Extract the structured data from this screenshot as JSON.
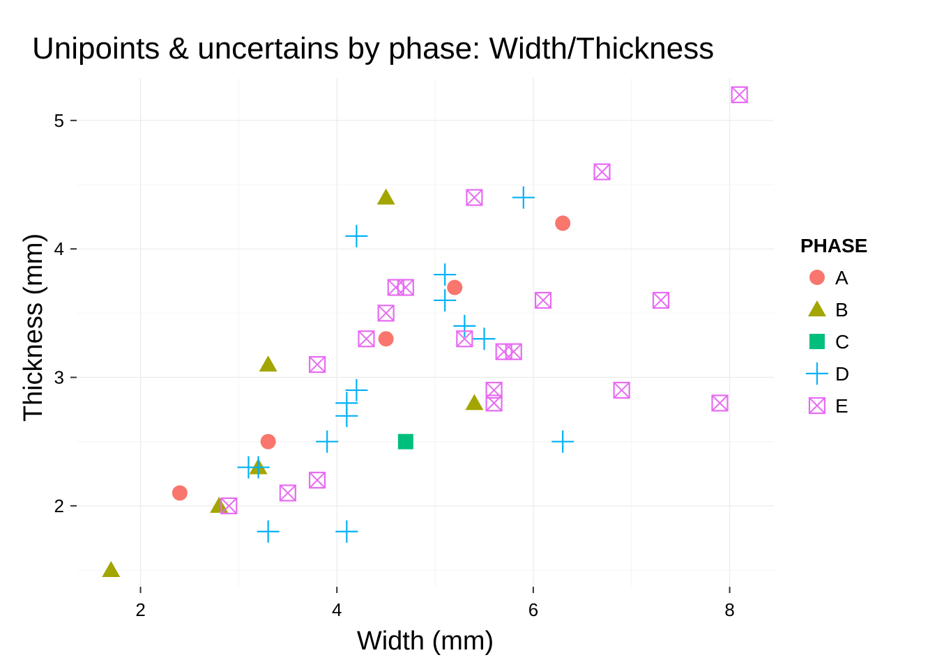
{
  "chart_data": {
    "type": "scatter",
    "title": "Unipoints & uncertains by phase: Width/Thickness",
    "xlabel": "Width (mm)",
    "ylabel": "Thickness (mm)",
    "xlim": [
      1.35,
      8.45
    ],
    "ylim": [
      1.37,
      5.33
    ],
    "x_ticks": [
      2,
      4,
      6,
      8
    ],
    "y_ticks": [
      2,
      3,
      4,
      5
    ],
    "grid": true,
    "legend": {
      "title": "PHASE",
      "position": "right"
    },
    "series": [
      {
        "name": "A",
        "shape": "circle",
        "color": "#F8766D",
        "points": [
          [
            2.4,
            2.1
          ],
          [
            3.3,
            2.5
          ],
          [
            4.5,
            3.3
          ],
          [
            5.2,
            3.7
          ],
          [
            6.3,
            4.2
          ]
        ]
      },
      {
        "name": "B",
        "shape": "triangle",
        "color": "#A3A500",
        "points": [
          [
            1.7,
            1.5
          ],
          [
            2.8,
            2.0
          ],
          [
            3.2,
            2.3
          ],
          [
            3.3,
            3.1
          ],
          [
            4.5,
            4.4
          ],
          [
            5.4,
            2.8
          ]
        ]
      },
      {
        "name": "C",
        "shape": "square",
        "color": "#00BF7D",
        "points": [
          [
            4.7,
            2.5
          ]
        ]
      },
      {
        "name": "D",
        "shape": "plus",
        "color": "#00B0F6",
        "points": [
          [
            3.1,
            2.3
          ],
          [
            3.2,
            2.3
          ],
          [
            3.3,
            1.8
          ],
          [
            3.9,
            2.5
          ],
          [
            4.1,
            1.8
          ],
          [
            4.1,
            2.7
          ],
          [
            4.1,
            2.8
          ],
          [
            4.2,
            2.9
          ],
          [
            4.2,
            4.1
          ],
          [
            5.1,
            3.6
          ],
          [
            5.1,
            3.8
          ],
          [
            5.3,
            3.4
          ],
          [
            5.5,
            3.3
          ],
          [
            5.9,
            4.4
          ],
          [
            6.3,
            2.5
          ]
        ]
      },
      {
        "name": "E",
        "shape": "square-cross",
        "color": "#E76BF3",
        "points": [
          [
            2.9,
            2.0
          ],
          [
            3.5,
            2.1
          ],
          [
            3.8,
            2.2
          ],
          [
            3.8,
            3.1
          ],
          [
            4.3,
            3.3
          ],
          [
            4.5,
            3.5
          ],
          [
            4.6,
            3.7
          ],
          [
            4.7,
            3.7
          ],
          [
            5.3,
            3.3
          ],
          [
            5.4,
            4.4
          ],
          [
            5.6,
            2.8
          ],
          [
            5.6,
            2.9
          ],
          [
            5.7,
            3.2
          ],
          [
            5.8,
            3.2
          ],
          [
            6.1,
            3.6
          ],
          [
            6.7,
            4.6
          ],
          [
            6.9,
            2.9
          ],
          [
            7.3,
            3.6
          ],
          [
            7.9,
            2.8
          ],
          [
            8.1,
            5.2
          ]
        ]
      }
    ]
  }
}
